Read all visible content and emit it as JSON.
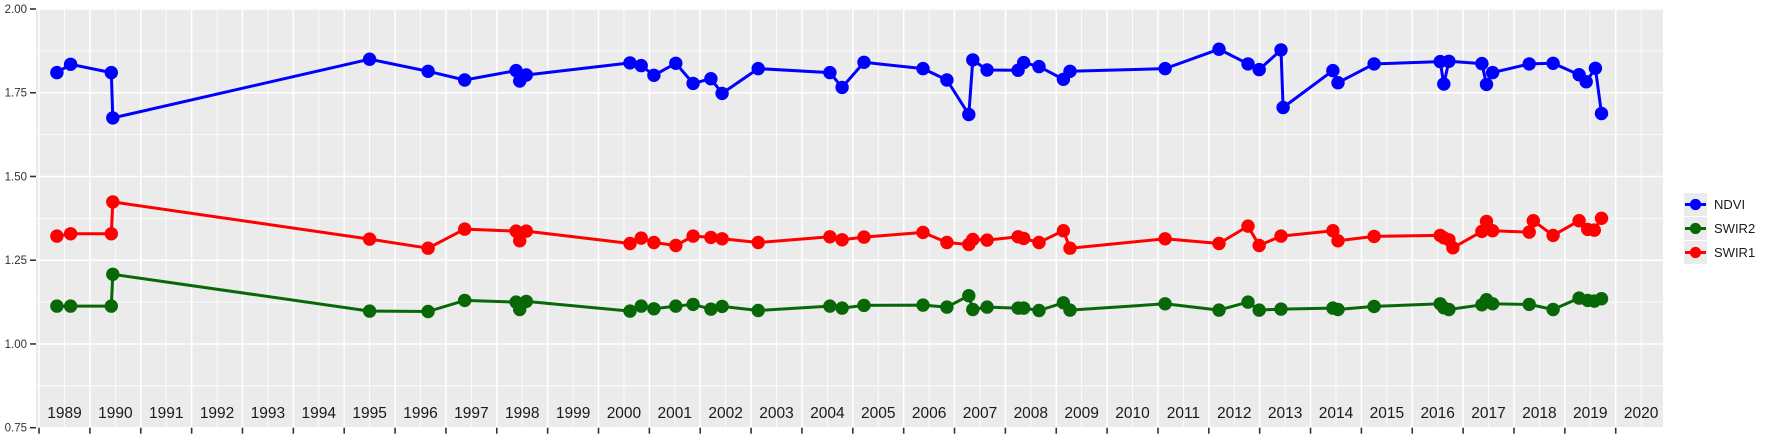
{
  "chart_data": {
    "type": "line",
    "title": "",
    "xlabel": "",
    "ylabel": "",
    "x_ticks": [
      1989,
      1990,
      1991,
      1992,
      1993,
      1994,
      1995,
      1996,
      1997,
      1998,
      1999,
      2000,
      2001,
      2002,
      2003,
      2004,
      2005,
      2006,
      2007,
      2008,
      2009,
      2010,
      2011,
      2012,
      2013,
      2014,
      2015,
      2016,
      2017,
      2018,
      2019,
      2020
    ],
    "y_ticks": [
      0.75,
      1.0,
      1.25,
      1.5,
      1.75,
      2.0
    ],
    "y_tick_labels": [
      "0.75",
      "1.00",
      "1.25",
      "1.50",
      "1.75",
      "2.00"
    ],
    "xlim": [
      1988.94,
      2020.93
    ],
    "ylim": [
      0.75,
      2.0
    ],
    "grid": {
      "major": true,
      "minor": true
    },
    "legend_position": "right",
    "series": [
      {
        "name": "NDVI",
        "color": "#0000ff",
        "points": [
          [
            1989.35,
            1.81
          ],
          [
            1989.62,
            1.835
          ],
          [
            1990.42,
            1.81
          ],
          [
            1990.45,
            1.675
          ],
          [
            1995.5,
            1.85
          ],
          [
            1996.65,
            1.814
          ],
          [
            1997.37,
            1.788
          ],
          [
            1998.38,
            1.816
          ],
          [
            1998.45,
            1.785
          ],
          [
            1998.58,
            1.803
          ],
          [
            2000.62,
            1.839
          ],
          [
            2000.84,
            1.831
          ],
          [
            2001.09,
            1.802
          ],
          [
            2001.52,
            1.838
          ],
          [
            2001.86,
            1.778
          ],
          [
            2002.21,
            1.792
          ],
          [
            2002.43,
            1.748
          ],
          [
            2003.14,
            1.822
          ],
          [
            2004.55,
            1.81
          ],
          [
            2004.79,
            1.766
          ],
          [
            2005.22,
            1.841
          ],
          [
            2006.38,
            1.822
          ],
          [
            2006.85,
            1.788
          ],
          [
            2007.28,
            1.685
          ],
          [
            2007.36,
            1.848
          ],
          [
            2007.64,
            1.818
          ],
          [
            2008.25,
            1.817
          ],
          [
            2008.36,
            1.84
          ],
          [
            2008.66,
            1.828
          ],
          [
            2009.14,
            1.79
          ],
          [
            2009.27,
            1.814
          ],
          [
            2011.14,
            1.822
          ],
          [
            2012.2,
            1.88
          ],
          [
            2012.77,
            1.836
          ],
          [
            2012.99,
            1.819
          ],
          [
            2013.42,
            1.878
          ],
          [
            2013.46,
            1.706
          ],
          [
            2014.44,
            1.816
          ],
          [
            2014.54,
            1.78
          ],
          [
            2015.25,
            1.836
          ],
          [
            2016.55,
            1.843
          ],
          [
            2016.62,
            1.776
          ],
          [
            2016.72,
            1.844
          ],
          [
            2017.37,
            1.837
          ],
          [
            2017.46,
            1.775
          ],
          [
            2017.58,
            1.81
          ],
          [
            2018.3,
            1.836
          ],
          [
            2018.77,
            1.838
          ],
          [
            2019.28,
            1.804
          ],
          [
            2019.42,
            1.783
          ],
          [
            2019.6,
            1.823
          ],
          [
            2019.72,
            1.688
          ]
        ]
      },
      {
        "name": "SWIR2",
        "color": "#086808",
        "points": [
          [
            1989.35,
            1.113
          ],
          [
            1989.62,
            1.113
          ],
          [
            1990.42,
            1.113
          ],
          [
            1990.45,
            1.208
          ],
          [
            1995.5,
            1.098
          ],
          [
            1996.65,
            1.097
          ],
          [
            1997.37,
            1.13
          ],
          [
            1998.38,
            1.125
          ],
          [
            1998.45,
            1.103
          ],
          [
            1998.58,
            1.127
          ],
          [
            2000.62,
            1.098
          ],
          [
            2000.84,
            1.113
          ],
          [
            2001.09,
            1.105
          ],
          [
            2001.52,
            1.113
          ],
          [
            2001.86,
            1.118
          ],
          [
            2002.21,
            1.104
          ],
          [
            2002.43,
            1.112
          ],
          [
            2003.14,
            1.1
          ],
          [
            2004.55,
            1.113
          ],
          [
            2004.79,
            1.107
          ],
          [
            2005.22,
            1.115
          ],
          [
            2006.38,
            1.116
          ],
          [
            2006.85,
            1.11
          ],
          [
            2007.28,
            1.144
          ],
          [
            2007.36,
            1.103
          ],
          [
            2007.64,
            1.11
          ],
          [
            2008.25,
            1.107
          ],
          [
            2008.36,
            1.107
          ],
          [
            2008.66,
            1.1
          ],
          [
            2009.14,
            1.123
          ],
          [
            2009.27,
            1.101
          ],
          [
            2011.14,
            1.12
          ],
          [
            2012.2,
            1.101
          ],
          [
            2012.77,
            1.125
          ],
          [
            2012.99,
            1.101
          ],
          [
            2013.42,
            1.104
          ],
          [
            2014.44,
            1.107
          ],
          [
            2014.54,
            1.103
          ],
          [
            2015.25,
            1.112
          ],
          [
            2016.55,
            1.12
          ],
          [
            2016.62,
            1.108
          ],
          [
            2016.72,
            1.103
          ],
          [
            2017.37,
            1.117
          ],
          [
            2017.46,
            1.132
          ],
          [
            2017.58,
            1.12
          ],
          [
            2018.3,
            1.118
          ],
          [
            2018.77,
            1.103
          ],
          [
            2019.28,
            1.137
          ],
          [
            2019.45,
            1.13
          ],
          [
            2019.58,
            1.128
          ],
          [
            2019.72,
            1.135
          ]
        ]
      },
      {
        "name": "SWIR1",
        "color": "#ff0000",
        "points": [
          [
            1989.35,
            1.322
          ],
          [
            1989.62,
            1.329
          ],
          [
            1990.42,
            1.329
          ],
          [
            1990.45,
            1.424
          ],
          [
            1995.5,
            1.313
          ],
          [
            1996.65,
            1.286
          ],
          [
            1997.37,
            1.343
          ],
          [
            1998.38,
            1.337
          ],
          [
            1998.45,
            1.308
          ],
          [
            1998.58,
            1.337
          ],
          [
            2000.62,
            1.3
          ],
          [
            2000.84,
            1.316
          ],
          [
            2001.09,
            1.303
          ],
          [
            2001.52,
            1.294
          ],
          [
            2001.86,
            1.322
          ],
          [
            2002.21,
            1.318
          ],
          [
            2002.43,
            1.314
          ],
          [
            2003.14,
            1.303
          ],
          [
            2004.55,
            1.32
          ],
          [
            2004.79,
            1.311
          ],
          [
            2005.22,
            1.319
          ],
          [
            2006.38,
            1.333
          ],
          [
            2006.85,
            1.303
          ],
          [
            2007.28,
            1.297
          ],
          [
            2007.36,
            1.312
          ],
          [
            2007.64,
            1.31
          ],
          [
            2008.25,
            1.32
          ],
          [
            2008.36,
            1.315
          ],
          [
            2008.66,
            1.303
          ],
          [
            2009.14,
            1.338
          ],
          [
            2009.27,
            1.286
          ],
          [
            2011.14,
            1.314
          ],
          [
            2012.2,
            1.3
          ],
          [
            2012.77,
            1.352
          ],
          [
            2012.99,
            1.294
          ],
          [
            2013.42,
            1.322
          ],
          [
            2014.44,
            1.338
          ],
          [
            2014.54,
            1.308
          ],
          [
            2015.25,
            1.321
          ],
          [
            2016.55,
            1.324
          ],
          [
            2016.62,
            1.317
          ],
          [
            2016.72,
            1.311
          ],
          [
            2016.8,
            1.287
          ],
          [
            2017.37,
            1.336
          ],
          [
            2017.46,
            1.366
          ],
          [
            2017.58,
            1.338
          ],
          [
            2018.3,
            1.334
          ],
          [
            2018.38,
            1.368
          ],
          [
            2018.77,
            1.324
          ],
          [
            2019.28,
            1.368
          ],
          [
            2019.45,
            1.342
          ],
          [
            2019.58,
            1.34
          ],
          [
            2019.72,
            1.375
          ]
        ]
      }
    ]
  },
  "legend": {
    "items": [
      {
        "label": "NDVI",
        "color": "#0000ff"
      },
      {
        "label": "SWIR2",
        "color": "#086808"
      },
      {
        "label": "SWIR1",
        "color": "#ff0000"
      }
    ]
  },
  "colors": {
    "panel_background": "#ebebeb",
    "gridline": "#ffffff",
    "axis_text_x": "#1a1a1a",
    "axis_text_y": "#333333",
    "tick": "#333333",
    "page_background": "#ffffff"
  }
}
